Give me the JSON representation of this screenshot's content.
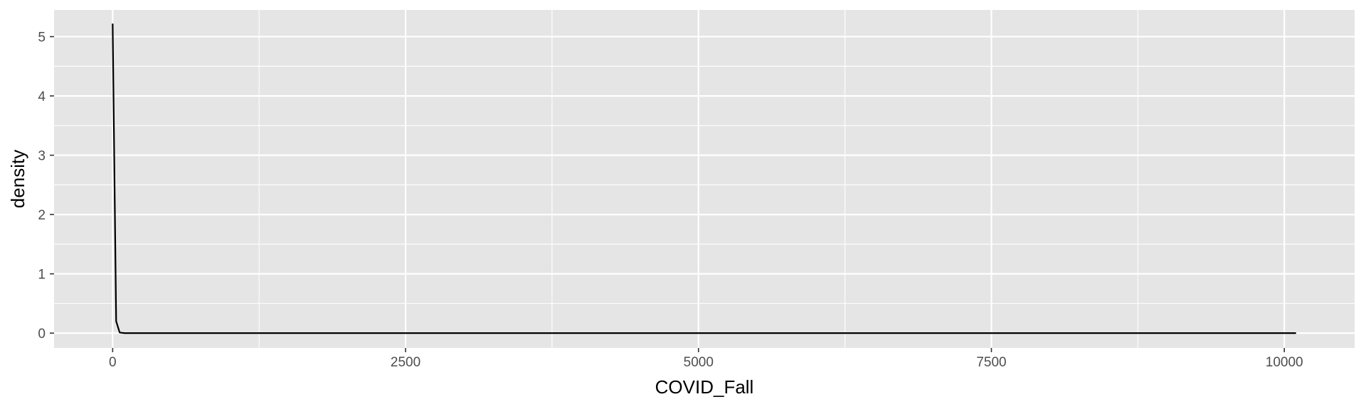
{
  "chart_data": {
    "type": "line",
    "title": "",
    "xlabel": "COVID_Fall",
    "ylabel": "density",
    "xlim": [
      -500,
      10600
    ],
    "ylim": [
      -0.25,
      5.45
    ],
    "x_ticks": [
      0,
      2500,
      5000,
      7500,
      10000
    ],
    "x_tick_labels": [
      "0",
      "2500",
      "5000",
      "7500",
      "10000"
    ],
    "y_ticks": [
      0,
      1,
      2,
      3,
      4,
      5
    ],
    "y_tick_labels": [
      "0",
      "1",
      "2",
      "3",
      "4",
      "5"
    ],
    "grid": true,
    "colors": {
      "panel": "#e5e5e5",
      "grid": "#ffffff",
      "line": "#000000",
      "tick_text": "#4d4d4d"
    },
    "series": [
      {
        "x": [
          0,
          30,
          60,
          100,
          500,
          1000,
          2500,
          5000,
          7500,
          10000,
          10100
        ],
        "y": [
          5.22,
          0.2,
          0.01,
          0.0,
          0.0,
          0.0,
          0.0,
          0.0,
          0.0,
          0.0,
          0.0
        ]
      }
    ]
  }
}
